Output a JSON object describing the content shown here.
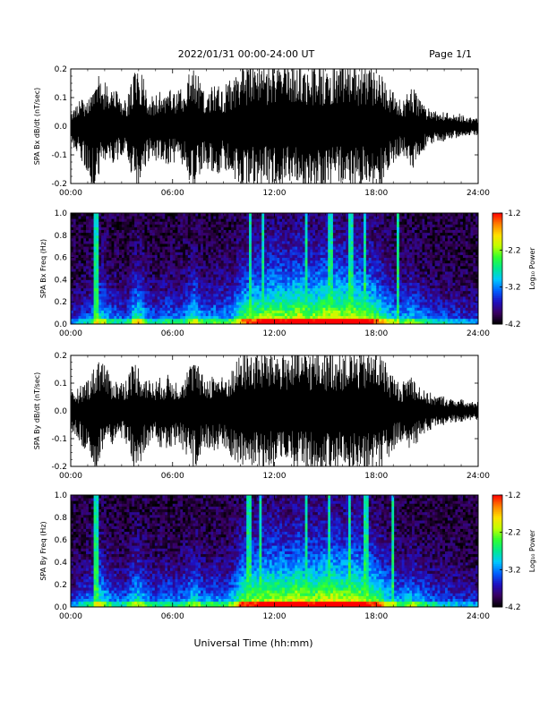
{
  "header": {
    "date_range": "2022/01/31  00:00-24:00 UT",
    "page": "Page 1/1"
  },
  "x_axis": {
    "label": "Universal Time (hh:mm)",
    "ticks": [
      "00:00",
      "06:00",
      "12:00",
      "18:00",
      "24:00"
    ],
    "range_hours": [
      0,
      24
    ]
  },
  "colorbar": {
    "label": "Log₁₀ Power",
    "ticks": [
      "-1.2",
      "-2.2",
      "-3.2",
      "-4.2"
    ],
    "range": [
      -4.2,
      -1.2
    ],
    "colors": [
      "#000000",
      "#3a0060",
      "#2010c0",
      "#0060ff",
      "#00c8ff",
      "#00e890",
      "#30ff30",
      "#c0ff00",
      "#ffe000",
      "#ff8000",
      "#ff0000"
    ]
  },
  "chart_data": [
    {
      "type": "line",
      "ylabel": "SPA Bx dB/dt (nT/sec)",
      "ylim": [
        -0.2,
        0.2
      ],
      "yticks": [
        "0.2",
        "0.1",
        "0.0",
        "-0.1",
        "-0.2"
      ],
      "xlim": [
        0,
        24
      ],
      "x_step_hours": 0.25,
      "envelope_max": [
        0.06,
        0.07,
        0.08,
        0.09,
        0.09,
        0.1,
        0.13,
        0.2,
        0.15,
        0.11,
        0.12,
        0.11,
        0.1,
        0.09,
        0.12,
        0.18,
        0.2,
        0.16,
        0.12,
        0.11,
        0.1,
        0.11,
        0.12,
        0.13,
        0.12,
        0.11,
        0.12,
        0.14,
        0.17,
        0.2,
        0.17,
        0.13,
        0.12,
        0.14,
        0.15,
        0.14,
        0.13,
        0.14,
        0.16,
        0.18,
        0.2,
        0.2,
        0.2,
        0.2,
        0.2,
        0.2,
        0.2,
        0.2,
        0.2,
        0.2,
        0.2,
        0.2,
        0.2,
        0.2,
        0.2,
        0.2,
        0.2,
        0.2,
        0.2,
        0.2,
        0.2,
        0.2,
        0.2,
        0.2,
        0.2,
        0.2,
        0.2,
        0.2,
        0.2,
        0.2,
        0.2,
        0.2,
        0.2,
        0.18,
        0.16,
        0.13,
        0.11,
        0.09,
        0.08,
        0.1,
        0.14,
        0.12,
        0.09,
        0.07,
        0.06,
        0.05,
        0.05,
        0.04,
        0.05,
        0.04,
        0.04,
        0.04,
        0.04,
        0.03,
        0.03,
        0.03
      ],
      "envelope_min": [
        -0.06,
        -0.08,
        -0.1,
        -0.12,
        -0.15,
        -0.2,
        -0.2,
        -0.14,
        -0.12,
        -0.11,
        -0.12,
        -0.11,
        -0.1,
        -0.11,
        -0.15,
        -0.2,
        -0.2,
        -0.15,
        -0.12,
        -0.11,
        -0.11,
        -0.12,
        -0.12,
        -0.13,
        -0.12,
        -0.11,
        -0.12,
        -0.15,
        -0.18,
        -0.2,
        -0.18,
        -0.14,
        -0.13,
        -0.15,
        -0.16,
        -0.15,
        -0.14,
        -0.15,
        -0.17,
        -0.19,
        -0.2,
        -0.2,
        -0.2,
        -0.2,
        -0.2,
        -0.2,
        -0.2,
        -0.2,
        -0.2,
        -0.2,
        -0.2,
        -0.2,
        -0.2,
        -0.2,
        -0.2,
        -0.2,
        -0.2,
        -0.2,
        -0.2,
        -0.2,
        -0.2,
        -0.2,
        -0.2,
        -0.2,
        -0.2,
        -0.2,
        -0.2,
        -0.2,
        -0.2,
        -0.2,
        -0.2,
        -0.2,
        -0.2,
        -0.2,
        -0.18,
        -0.15,
        -0.12,
        -0.1,
        -0.09,
        -0.11,
        -0.15,
        -0.13,
        -0.1,
        -0.08,
        -0.07,
        -0.06,
        -0.05,
        -0.05,
        -0.05,
        -0.04,
        -0.04,
        -0.04,
        -0.04,
        -0.03,
        -0.03,
        -0.03
      ]
    },
    {
      "type": "heatmap",
      "ylabel": "SPA Bx Freq (Hz)",
      "ylim": [
        0,
        1
      ],
      "yticks": [
        "1.0",
        "0.8",
        "0.6",
        "0.4",
        "0.2",
        "0.0"
      ],
      "xlim": [
        0,
        24
      ],
      "x_step_hours": 0.25,
      "activity": [
        0.25,
        0.28,
        0.3,
        0.32,
        0.35,
        0.4,
        0.5,
        0.6,
        0.55,
        0.42,
        0.4,
        0.38,
        0.36,
        0.35,
        0.45,
        0.6,
        0.65,
        0.55,
        0.42,
        0.38,
        0.36,
        0.38,
        0.4,
        0.42,
        0.4,
        0.38,
        0.4,
        0.45,
        0.55,
        0.62,
        0.55,
        0.45,
        0.42,
        0.45,
        0.48,
        0.46,
        0.44,
        0.46,
        0.5,
        0.58,
        0.7,
        0.75,
        0.78,
        0.8,
        0.82,
        0.84,
        0.85,
        0.86,
        0.88,
        0.88,
        0.86,
        0.85,
        0.86,
        0.9,
        0.95,
        0.88,
        0.85,
        0.84,
        0.86,
        0.9,
        0.92,
        0.94,
        0.92,
        0.9,
        0.88,
        0.9,
        0.92,
        0.9,
        0.88,
        0.86,
        0.84,
        0.8,
        0.76,
        0.7,
        0.64,
        0.58,
        0.52,
        0.48,
        0.45,
        0.5,
        0.55,
        0.5,
        0.45,
        0.42,
        0.4,
        0.38,
        0.36,
        0.34,
        0.36,
        0.33,
        0.32,
        0.31,
        0.3,
        0.29,
        0.28,
        0.27
      ],
      "spike_hours": [
        1.5,
        10.6,
        11.3,
        13.9,
        15.3,
        16.5,
        17.3,
        19.3
      ]
    },
    {
      "type": "line",
      "ylabel": "SPA By dB/dt (nT/sec)",
      "ylim": [
        -0.2,
        0.2
      ],
      "yticks": [
        "0.2",
        "0.1",
        "0.0",
        "-0.1",
        "-0.2"
      ],
      "xlim": [
        0,
        24
      ],
      "x_step_hours": 0.25,
      "envelope_max": [
        0.06,
        0.07,
        0.08,
        0.09,
        0.11,
        0.13,
        0.16,
        0.2,
        0.16,
        0.12,
        0.11,
        0.1,
        0.1,
        0.11,
        0.14,
        0.17,
        0.15,
        0.12,
        0.11,
        0.1,
        0.1,
        0.11,
        0.11,
        0.12,
        0.11,
        0.1,
        0.11,
        0.13,
        0.15,
        0.18,
        0.15,
        0.12,
        0.11,
        0.12,
        0.13,
        0.12,
        0.11,
        0.12,
        0.14,
        0.16,
        0.2,
        0.2,
        0.2,
        0.2,
        0.2,
        0.2,
        0.2,
        0.2,
        0.2,
        0.2,
        0.2,
        0.2,
        0.2,
        0.2,
        0.2,
        0.2,
        0.2,
        0.2,
        0.2,
        0.2,
        0.2,
        0.2,
        0.2,
        0.2,
        0.2,
        0.2,
        0.2,
        0.2,
        0.2,
        0.2,
        0.2,
        0.2,
        0.2,
        0.19,
        0.17,
        0.14,
        0.12,
        0.1,
        0.09,
        0.11,
        0.13,
        0.11,
        0.09,
        0.07,
        0.06,
        0.06,
        0.05,
        0.05,
        0.05,
        0.04,
        0.04,
        0.04,
        0.04,
        0.03,
        0.03,
        0.03
      ],
      "envelope_min": [
        -0.06,
        -0.08,
        -0.1,
        -0.12,
        -0.14,
        -0.18,
        -0.2,
        -0.15,
        -0.12,
        -0.11,
        -0.11,
        -0.1,
        -0.1,
        -0.11,
        -0.15,
        -0.2,
        -0.2,
        -0.14,
        -0.12,
        -0.11,
        -0.11,
        -0.12,
        -0.12,
        -0.13,
        -0.12,
        -0.11,
        -0.12,
        -0.14,
        -0.17,
        -0.2,
        -0.17,
        -0.13,
        -0.12,
        -0.13,
        -0.14,
        -0.13,
        -0.12,
        -0.13,
        -0.16,
        -0.18,
        -0.2,
        -0.2,
        -0.2,
        -0.2,
        -0.2,
        -0.2,
        -0.2,
        -0.2,
        -0.2,
        -0.2,
        -0.2,
        -0.2,
        -0.2,
        -0.2,
        -0.2,
        -0.2,
        -0.2,
        -0.2,
        -0.2,
        -0.2,
        -0.2,
        -0.2,
        -0.2,
        -0.2,
        -0.2,
        -0.2,
        -0.2,
        -0.2,
        -0.2,
        -0.2,
        -0.2,
        -0.2,
        -0.2,
        -0.2,
        -0.18,
        -0.15,
        -0.13,
        -0.11,
        -0.1,
        -0.12,
        -0.16,
        -0.13,
        -0.1,
        -0.08,
        -0.07,
        -0.06,
        -0.05,
        -0.05,
        -0.05,
        -0.04,
        -0.04,
        -0.04,
        -0.04,
        -0.03,
        -0.03,
        -0.03
      ]
    },
    {
      "type": "heatmap",
      "ylabel": "SPA By Freq (Hz)",
      "ylim": [
        0,
        1
      ],
      "yticks": [
        "1.0",
        "0.8",
        "0.6",
        "0.4",
        "0.2",
        "0.0"
      ],
      "xlim": [
        0,
        24
      ],
      "x_step_hours": 0.25,
      "activity": [
        0.28,
        0.3,
        0.33,
        0.36,
        0.4,
        0.45,
        0.55,
        0.62,
        0.55,
        0.45,
        0.42,
        0.4,
        0.38,
        0.38,
        0.48,
        0.58,
        0.6,
        0.52,
        0.42,
        0.4,
        0.38,
        0.4,
        0.42,
        0.44,
        0.42,
        0.4,
        0.42,
        0.46,
        0.52,
        0.58,
        0.52,
        0.45,
        0.42,
        0.44,
        0.46,
        0.44,
        0.42,
        0.45,
        0.52,
        0.62,
        0.75,
        0.8,
        0.82,
        0.84,
        0.85,
        0.86,
        0.87,
        0.88,
        0.9,
        0.9,
        0.88,
        0.87,
        0.88,
        0.92,
        0.96,
        0.9,
        0.87,
        0.86,
        0.88,
        0.92,
        0.94,
        0.95,
        0.93,
        0.91,
        0.89,
        0.91,
        0.93,
        0.91,
        0.89,
        0.87,
        0.85,
        0.81,
        0.77,
        0.71,
        0.65,
        0.59,
        0.53,
        0.49,
        0.46,
        0.5,
        0.55,
        0.5,
        0.46,
        0.43,
        0.41,
        0.39,
        0.37,
        0.35,
        0.37,
        0.34,
        0.33,
        0.32,
        0.31,
        0.3,
        0.29,
        0.28
      ],
      "spike_hours": [
        1.5,
        10.5,
        11.2,
        13.9,
        15.2,
        16.4,
        17.4,
        19.0
      ]
    }
  ]
}
